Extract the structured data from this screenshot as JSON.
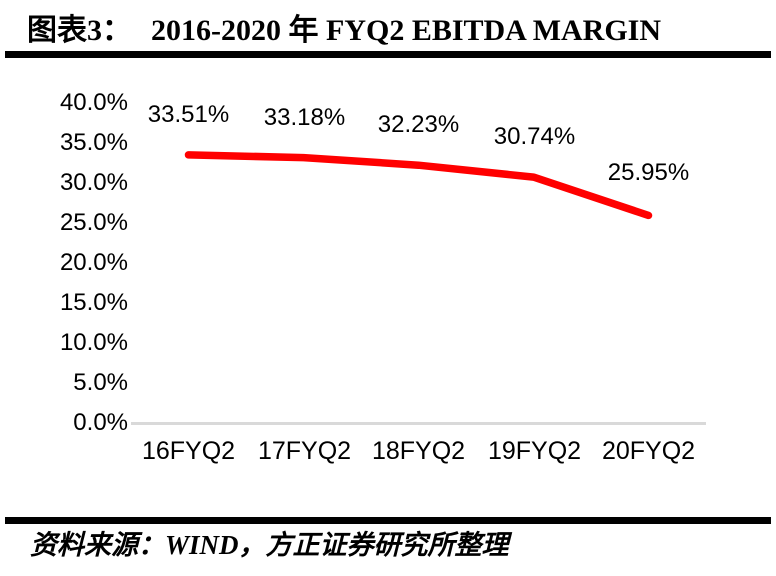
{
  "header": {
    "figure_label": "图表3：",
    "title": "2016-2020 年 FYQ2 EBITDA MARGIN"
  },
  "chart_data": {
    "type": "line",
    "title": "2016-2020 年 FYQ2 EBITDA MARGIN",
    "categories": [
      "16FYQ2",
      "17FYQ2",
      "18FYQ2",
      "19FYQ2",
      "20FYQ2"
    ],
    "series": [
      {
        "name": "EBITDA MARGIN",
        "values": [
          33.51,
          33.18,
          32.23,
          30.74,
          25.95
        ]
      }
    ],
    "data_labels": [
      "33.51%",
      "33.18%",
      "32.23%",
      "30.74%",
      "25.95%"
    ],
    "y_ticks": [
      "40.0%",
      "35.0%",
      "30.0%",
      "25.0%",
      "20.0%",
      "15.0%",
      "10.0%",
      "5.0%",
      "0.0%"
    ],
    "ylim": [
      0,
      40
    ],
    "xlabel": "",
    "ylabel": "",
    "grid": false,
    "legend_position": "none",
    "line_color": "#FF0000",
    "axis_color": "#D9D9D9",
    "text_color": "#000000"
  },
  "footer": {
    "source": "资料来源：WIND，方正证券研究所整理"
  }
}
